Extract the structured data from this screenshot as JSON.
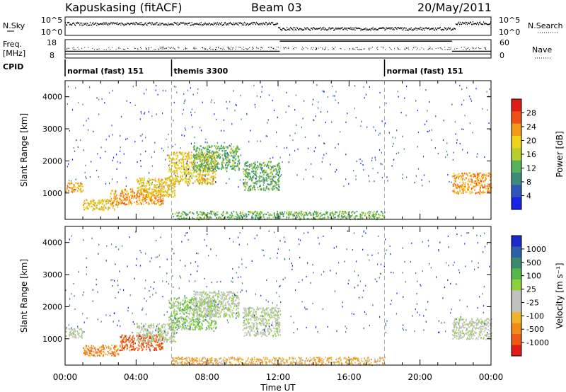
{
  "header": {
    "station": "Kapuskasing (fitACF)",
    "beam": "Beam 03",
    "date": "20/May/2011"
  },
  "status_panels": {
    "nsky_label": "N.Sky",
    "nsearch_label": "N.Search",
    "freq_label": "Freq.",
    "freq_unit": "[MHz]",
    "nave_label": "Nave",
    "cpid_label": "CPID",
    "noise_ticks_left": [
      "10^5",
      "10^0"
    ],
    "noise_ticks_right": [
      "10^5",
      "10^0"
    ],
    "freq_ticks": [
      "18",
      "8"
    ],
    "nave_ticks": [
      "60",
      "0"
    ],
    "freq_mhz": 10.2,
    "nave_segments": [
      {
        "start": 0,
        "end": 12.1,
        "value": 22
      },
      {
        "start": 12.1,
        "end": 21.8,
        "value": 55
      },
      {
        "start": 21.8,
        "end": 24,
        "value": 22
      }
    ],
    "cpid_segments": [
      {
        "start": 0,
        "label": "normal (fast) 151"
      },
      {
        "start": 6,
        "label": "themis 3300"
      },
      {
        "start": 18,
        "label": "normal (fast) 151"
      }
    ]
  },
  "axes": {
    "ylabel": "Slant Range [km]",
    "xlabel": "Time UT",
    "yticks": [
      "1000",
      "2000",
      "3000",
      "4000"
    ],
    "xticks": [
      "00:00",
      "04:00",
      "08:00",
      "12:00",
      "16:00",
      "20:00",
      "00:00"
    ]
  },
  "colorbars": {
    "power": {
      "label": "Power [dB]",
      "ticks": [
        "4",
        "8",
        "12",
        "16",
        "20",
        "24",
        "28"
      ],
      "colors": [
        "#1a22e6",
        "#2f55b8",
        "#3c8a7a",
        "#56b25a",
        "#b6cf2a",
        "#f0d21c",
        "#f29a1a",
        "#ee5016",
        "#e01c14"
      ]
    },
    "velocity": {
      "label": "Velocity [m s⁻¹]",
      "ticks": [
        "1000",
        "500",
        "100",
        "25",
        "-25",
        "-100",
        "-500",
        "-1000"
      ],
      "colors": [
        "#1a28c8",
        "#2d5fa8",
        "#3a8a6a",
        "#55b84a",
        "#8ad23a",
        "#c2c2bc",
        "#c2c2bc",
        "#f0b428",
        "#f08a18",
        "#ee5a14",
        "#e01c14"
      ]
    }
  },
  "chart_data": [
    {
      "type": "heatmap",
      "name": "power",
      "x_range": [
        0,
        24
      ],
      "y_range": [
        180,
        4500
      ],
      "unit_x": "hours UT",
      "unit_y": "km",
      "scatter_regions": [
        {
          "t_start": 0,
          "t_end": 1.0,
          "r_low": 1050,
          "r_high": 1350,
          "level": 6
        },
        {
          "t_start": 1.0,
          "t_end": 3.0,
          "r_low": 480,
          "r_high": 820,
          "level": 5
        },
        {
          "t_start": 2.5,
          "t_end": 5.5,
          "r_low": 650,
          "r_high": 1150,
          "level": 6
        },
        {
          "t_start": 4.0,
          "t_end": 6.2,
          "r_low": 900,
          "r_high": 1500,
          "level": 5
        },
        {
          "t_start": 5.8,
          "t_end": 8.5,
          "r_low": 1300,
          "r_high": 2300,
          "level": 5
        },
        {
          "t_start": 7.2,
          "t_end": 9.8,
          "r_low": 1700,
          "r_high": 2500,
          "level": 3
        },
        {
          "t_start": 10.0,
          "t_end": 12.1,
          "r_low": 1100,
          "r_high": 2000,
          "level": 3
        },
        {
          "t_start": 6.0,
          "t_end": 18.0,
          "r_low": 200,
          "r_high": 450,
          "level": 3
        },
        {
          "t_start": 21.8,
          "t_end": 24,
          "r_low": 1000,
          "r_high": 1650,
          "level": 6
        }
      ]
    },
    {
      "type": "heatmap",
      "name": "velocity",
      "x_range": [
        0,
        24
      ],
      "y_range": [
        180,
        4500
      ],
      "unit_x": "hours UT",
      "unit_y": "km",
      "scatter_regions": [
        {
          "t_start": 0,
          "t_end": 1.0,
          "r_low": 1050,
          "r_high": 1350,
          "level": 5
        },
        {
          "t_start": 1.0,
          "t_end": 3.0,
          "r_low": 480,
          "r_high": 820,
          "level": 8
        },
        {
          "t_start": 3.0,
          "t_end": 5.5,
          "r_low": 650,
          "r_high": 1150,
          "level": 9
        },
        {
          "t_start": 4.0,
          "t_end": 6.2,
          "r_low": 900,
          "r_high": 1500,
          "level": 5
        },
        {
          "t_start": 5.8,
          "t_end": 8.5,
          "r_low": 1300,
          "r_high": 2300,
          "level": 4
        },
        {
          "t_start": 7.2,
          "t_end": 9.8,
          "r_low": 1700,
          "r_high": 2500,
          "level": 5
        },
        {
          "t_start": 10.0,
          "t_end": 12.1,
          "r_low": 1100,
          "r_high": 2000,
          "level": 5
        },
        {
          "t_start": 6.0,
          "t_end": 18.0,
          "r_low": 200,
          "r_high": 450,
          "level": 7
        },
        {
          "t_start": 21.8,
          "t_end": 24,
          "r_low": 1000,
          "r_high": 1650,
          "level": 5
        }
      ]
    }
  ]
}
